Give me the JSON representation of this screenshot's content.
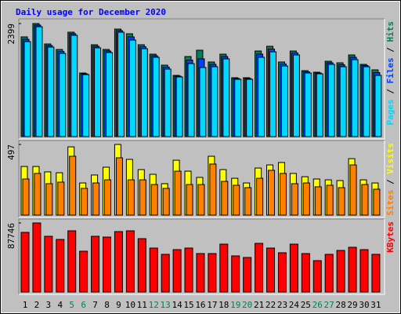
{
  "chart_data": {
    "type": "bar",
    "title": "Daily usage for December 2020",
    "categories": [
      "1",
      "2",
      "3",
      "4",
      "5",
      "6",
      "7",
      "8",
      "9",
      "10",
      "11",
      "12",
      "13",
      "14",
      "15",
      "16",
      "17",
      "18",
      "19",
      "20",
      "21",
      "22",
      "23",
      "24",
      "25",
      "26",
      "27",
      "28",
      "29",
      "30",
      "31"
    ],
    "category_colors": [
      "#000000",
      "#000000",
      "#000000",
      "#000000",
      "#00805c",
      "#00805c",
      "#000000",
      "#000000",
      "#000000",
      "#000000",
      "#000000",
      "#00805c",
      "#00805c",
      "#000000",
      "#000000",
      "#000000",
      "#000000",
      "#000000",
      "#00805c",
      "#00805c",
      "#000000",
      "#000000",
      "#000000",
      "#000000",
      "#000000",
      "#00805c",
      "#00805c",
      "#000000",
      "#000000",
      "#000000",
      "#000000"
    ],
    "legend_separator": " / ",
    "panels": [
      {
        "ylim": [
          0,
          2399
        ],
        "yticks": [
          2399
        ],
        "series": [
          {
            "name": "Hits",
            "color": "#00805c",
            "values": [
              2116,
              2399,
              1966,
              1849,
              2216,
              1349,
              1949,
              1849,
              2282,
              2182,
              1949,
              1749,
              1516,
              1299,
              1699,
              1833,
              1583,
              1749,
              1249,
              1249,
              1816,
              1916,
              1583,
              1816,
              1399,
              1366,
              1599,
              1566,
              1733,
              1533,
              1416
            ]
          },
          {
            "name": "Files",
            "color": "#0040ff",
            "values": [
              2066,
              2366,
              1933,
              1808,
              2183,
              1333,
              1916,
              1816,
              2249,
              2116,
              1908,
              1716,
              1475,
              1283,
              1624,
              1650,
              1533,
              1699,
              1233,
              1233,
              1750,
              1858,
              1541,
              1775,
              1374,
              1350,
              1566,
              1525,
              1683,
              1508,
              1358
            ]
          },
          {
            "name": "Pages",
            "color": "#00d8ff",
            "values": [
              2016,
              2332,
              1899,
              1766,
              2149,
              1316,
              1883,
              1783,
              2216,
              2049,
              1866,
              1683,
              1433,
              1266,
              1549,
              1466,
              1483,
              1649,
              1216,
              1216,
              1683,
              1799,
              1499,
              1733,
              1349,
              1333,
              1533,
              1483,
              1633,
              1483,
              1299
            ]
          }
        ]
      },
      {
        "ylim": [
          0,
          497
        ],
        "yticks": [
          497
        ],
        "series": [
          {
            "name": "Visits",
            "color": "#ffff00",
            "values": [
              342,
              342,
              304,
              298,
              480,
              226,
              282,
              337,
              497,
              392,
              320,
              287,
              221,
              386,
              309,
              265,
              414,
              320,
              259,
              226,
              331,
              353,
              370,
              293,
              270,
              254,
              248,
              243,
              397,
              248,
              226
            ]
          },
          {
            "name": "Sites",
            "color": "#ff8000",
            "values": [
              254,
              293,
              221,
              232,
              414,
              188,
              226,
              248,
              403,
              248,
              248,
              215,
              188,
              309,
              215,
              215,
              359,
              237,
              210,
              193,
              259,
              315,
              293,
              221,
              226,
              199,
              210,
              193,
              353,
              215,
              182
            ]
          }
        ]
      },
      {
        "ylim": [
          0,
          87746
        ],
        "yticks": [
          87746
        ],
        "series": [
          {
            "name": "KBytes",
            "color": "#ff0000",
            "values": [
              75772,
              87746,
              70787,
              66799,
              77766,
              51844,
              70787,
              69790,
              76769,
              77766,
              67796,
              55832,
              47856,
              53838,
              55832,
              48853,
              48853,
              60817,
              45862,
              43868,
              61814,
              55832,
              49850,
              60817,
              48853,
              39880,
              47856,
              52841,
              56829,
              53838,
              47856
            ]
          }
        ]
      }
    ]
  }
}
